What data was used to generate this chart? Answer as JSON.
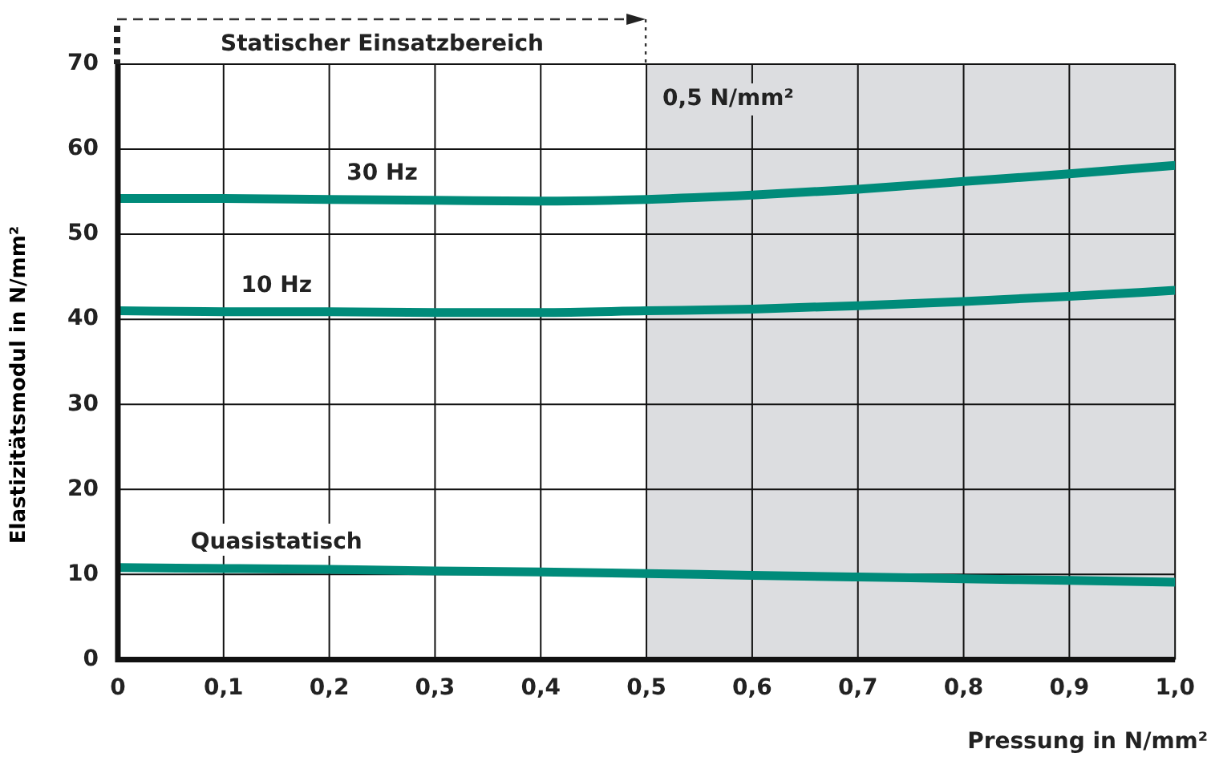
{
  "chart_data": {
    "type": "line",
    "xlabel": "Pressung in N/mm²",
    "ylabel": "Elastizitätsmodul in N/mm²",
    "x": [
      0,
      0.1,
      0.2,
      0.3,
      0.4,
      0.5,
      0.6,
      0.7,
      0.8,
      0.9,
      1.0
    ],
    "series": [
      {
        "name": "30 Hz",
        "color": "#008b7a",
        "values": [
          54.2,
          54.2,
          54.1,
          54.0,
          53.9,
          54.1,
          54.6,
          55.3,
          56.2,
          57.1,
          58.1
        ]
      },
      {
        "name": "10 Hz",
        "color": "#008b7a",
        "values": [
          41.0,
          40.9,
          40.9,
          40.8,
          40.8,
          41.0,
          41.2,
          41.6,
          42.1,
          42.7,
          43.4
        ]
      },
      {
        "name": "Quasistatisch",
        "color": "#008b7a",
        "values": [
          10.8,
          10.7,
          10.6,
          10.4,
          10.3,
          10.1,
          9.9,
          9.7,
          9.5,
          9.3,
          9.1
        ]
      }
    ],
    "xlim": [
      0,
      1.0
    ],
    "xticks": [
      0,
      {
        "value": 0.1,
        "label": "0,1"
      },
      {
        "value": 0.2,
        "label": "0,2"
      },
      {
        "value": 0.3,
        "label": "0,3"
      },
      {
        "value": 0.4,
        "label": "0,4"
      },
      {
        "value": 0.5,
        "label": "0,5"
      },
      {
        "value": 0.6,
        "label": "0,6"
      },
      {
        "value": 0.7,
        "label": "0,7"
      },
      {
        "value": 0.8,
        "label": "0,8"
      },
      {
        "value": 0.9,
        "label": "0,9"
      },
      {
        "value": 1.0,
        "label": "1,0"
      }
    ],
    "ylim": [
      0,
      70
    ],
    "yticks": [
      0,
      10,
      20,
      30,
      40,
      50,
      60,
      70
    ],
    "annotations": [
      "Statischer Einsatzbereich"
    ],
    "bands": [
      {
        "axis": "x",
        "from": 0.5,
        "to": 1.0,
        "label": "0,5 N/mm²",
        "color": "#dcdde0"
      }
    ],
    "grid": true,
    "legend": false,
    "marker": "none",
    "line_style": "solid"
  }
}
